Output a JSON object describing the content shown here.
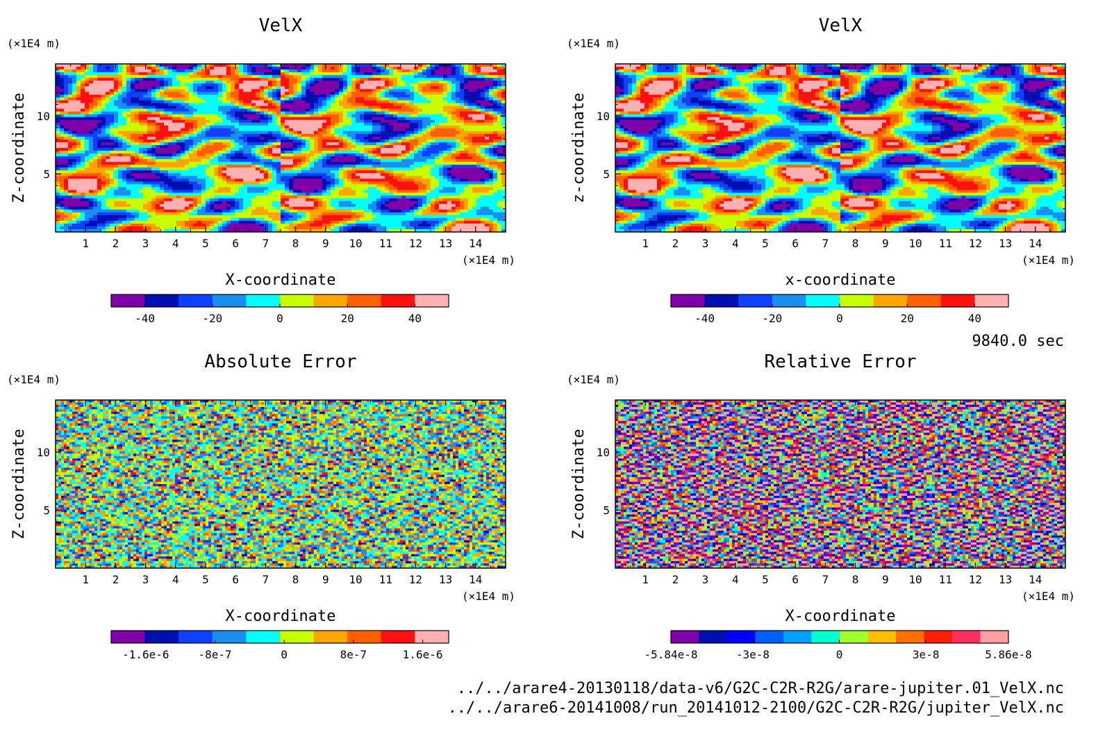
{
  "time_label": "9840.0 sec",
  "file_paths": [
    "../../arare4-20130118/data-v6/G2C-C2R-R2G/arare-jupiter.01_VelX.nc",
    "../../arare6-20141008/run_20141012-2100/G2C-C2R-R2G/jupiter_VelX.nc"
  ],
  "chart_data": [
    {
      "type": "heatmap",
      "title": "VelX",
      "xlabel": "X-coordinate",
      "ylabel": "Z-coordinate",
      "x_unit": "(×1E4 m)",
      "y_unit": "(×1E4 m)",
      "xlim": [
        0,
        15
      ],
      "ylim": [
        0,
        14.5
      ],
      "x_ticks": [
        "1",
        "2",
        "3",
        "4",
        "5",
        "6",
        "7",
        "8",
        "9",
        "10",
        "11",
        "12",
        "13",
        "14"
      ],
      "y_ticks": [
        "5",
        "10"
      ],
      "pattern": "smooth",
      "colorbar": {
        "range": [
          -50,
          50
        ],
        "tick_labels": [
          "-40",
          "-20",
          "0",
          "20",
          "40"
        ],
        "tick_values": [
          -40,
          -20,
          0,
          20,
          40
        ],
        "colors": [
          "#7f00a8",
          "#0010b0",
          "#1040ff",
          "#1a8ff0",
          "#00ffff",
          "#c8ff00",
          "#ffa500",
          "#ff6000",
          "#ff1010",
          "#ffb0b0"
        ]
      }
    },
    {
      "type": "heatmap",
      "title": "VelX",
      "xlabel": "x-coordinate",
      "ylabel": "z-coordinate",
      "x_unit": "(×1E4 m)",
      "y_unit": "(×1E4 m)",
      "xlim": [
        0,
        15
      ],
      "ylim": [
        0,
        14.5
      ],
      "x_ticks": [
        "1",
        "2",
        "3",
        "4",
        "5",
        "6",
        "7",
        "8",
        "9",
        "10",
        "11",
        "12",
        "13",
        "14"
      ],
      "y_ticks": [
        "5",
        "10"
      ],
      "pattern": "smooth",
      "colorbar": {
        "range": [
          -50,
          50
        ],
        "tick_labels": [
          "-40",
          "-20",
          "0",
          "20",
          "40"
        ],
        "tick_values": [
          -40,
          -20,
          0,
          20,
          40
        ],
        "colors": [
          "#7f00a8",
          "#0010b0",
          "#1040ff",
          "#1a8ff0",
          "#00ffff",
          "#c8ff00",
          "#ffa500",
          "#ff6000",
          "#ff1010",
          "#ffb0b0"
        ]
      }
    },
    {
      "type": "heatmap",
      "title": "Absolute Error",
      "xlabel": "X-coordinate",
      "ylabel": "Z-coordinate",
      "x_unit": "(×1E4 m)",
      "y_unit": "(×1E4 m)",
      "xlim": [
        0,
        15
      ],
      "ylim": [
        0,
        14.5
      ],
      "x_ticks": [
        "1",
        "2",
        "3",
        "4",
        "5",
        "6",
        "7",
        "8",
        "9",
        "10",
        "11",
        "12",
        "13",
        "14"
      ],
      "y_ticks": [
        "5",
        "10"
      ],
      "pattern": "noise_low",
      "colorbar": {
        "range": [
          -2e-06,
          1.9e-06
        ],
        "tick_labels": [
          "-1.6e-6",
          "-8e-7",
          "0",
          "8e-7",
          "1.6e-6"
        ],
        "tick_values": [
          -1.6e-06,
          -8e-07,
          0,
          8e-07,
          1.6e-06
        ],
        "colors": [
          "#7f00a8",
          "#0010b0",
          "#1040ff",
          "#1a8ff0",
          "#00ffff",
          "#c8ff00",
          "#ffa500",
          "#ff6000",
          "#ff1010",
          "#ffb0b0"
        ]
      }
    },
    {
      "type": "heatmap",
      "title": "Relative Error",
      "xlabel": "X-coordinate",
      "ylabel": "Z-coordinate",
      "x_unit": "(×1E4 m)",
      "y_unit": "(×1E4 m)",
      "xlim": [
        0,
        15
      ],
      "ylim": [
        0,
        14.5
      ],
      "x_ticks": [
        "1",
        "2",
        "3",
        "4",
        "5",
        "6",
        "7",
        "8",
        "9",
        "10",
        "11",
        "12",
        "13",
        "14"
      ],
      "y_ticks": [
        "5",
        "10"
      ],
      "pattern": "noise_high",
      "colorbar": {
        "range": [
          -5.84e-08,
          5.86e-08
        ],
        "tick_labels": [
          "-5.84e-8",
          "-3e-8",
          "0",
          "3e-8",
          "5.86e-8"
        ],
        "tick_values": [
          -5.84e-08,
          -3e-08,
          0,
          3e-08,
          5.86e-08
        ],
        "colors": [
          "#7f00a8",
          "#0010b0",
          "#0000ff",
          "#0060ff",
          "#00a0ff",
          "#00ffd0",
          "#a0ff30",
          "#ffc000",
          "#ff7000",
          "#ff2000",
          "#ff3060",
          "#ffa0a0"
        ]
      }
    }
  ]
}
